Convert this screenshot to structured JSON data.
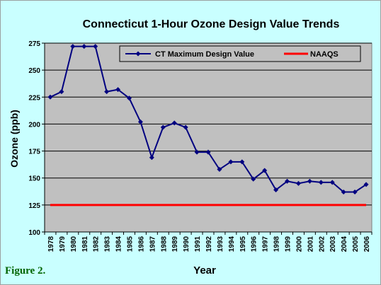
{
  "figure_label": "Figure 2.",
  "colors": {
    "background": "#c9ffff",
    "plot_area": "#c0c0c0",
    "series": "#000080",
    "naaqs": "#ff0000"
  },
  "chart_data": {
    "type": "line",
    "title": "Connecticut 1-Hour Ozone Design Value Trends",
    "xlabel": "Year",
    "ylabel": "Ozone (ppb)",
    "ylim": [
      100,
      275
    ],
    "yticks": [
      100,
      125,
      150,
      175,
      200,
      225,
      250,
      275
    ],
    "grid": "horizontal",
    "legend_position": "top",
    "x": [
      "1978",
      "1979",
      "1980",
      "1981",
      "1982",
      "1983",
      "1984",
      "1985",
      "1986",
      "1987",
      "1988",
      "1989",
      "1990",
      "1991",
      "1992",
      "1993",
      "1994",
      "1995",
      "1996",
      "1997",
      "1998",
      "1999",
      "2000",
      "2001",
      "2002",
      "2003",
      "2004",
      "2005",
      "2006"
    ],
    "series": [
      {
        "name": "CT Maximum Design Value",
        "values": [
          225,
          230,
          272,
          272,
          272,
          230,
          232,
          224,
          202,
          169,
          197,
          201,
          197,
          174,
          174,
          158,
          165,
          165,
          149,
          157,
          139,
          147,
          145,
          147,
          146,
          146,
          137,
          137,
          144
        ],
        "color": "#000080",
        "marker": "diamond"
      },
      {
        "name": "NAAQS",
        "values": [
          125,
          125,
          125,
          125,
          125,
          125,
          125,
          125,
          125,
          125,
          125,
          125,
          125,
          125,
          125,
          125,
          125,
          125,
          125,
          125,
          125,
          125,
          125,
          125,
          125,
          125,
          125,
          125,
          125
        ],
        "color": "#ff0000",
        "marker": "none"
      }
    ]
  }
}
